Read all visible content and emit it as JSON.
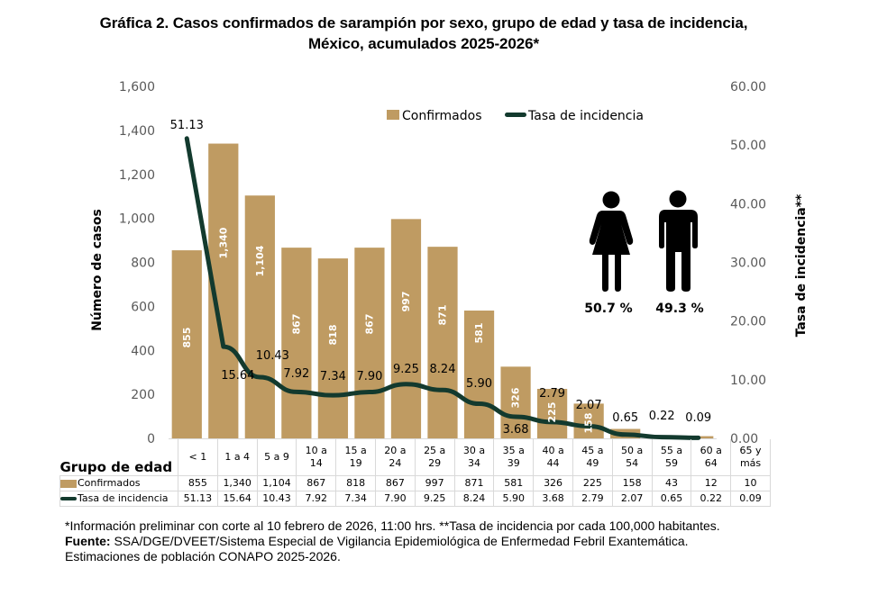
{
  "title_line1": "Gráfica 2. Casos confirmados  de sarampión por sexo, grupo de edad y tasa de incidencia,",
  "title_line2": "México, acumulados 2025-2026*",
  "colors": {
    "bar": "#BF9B62",
    "line": "#133A2E",
    "tick": "#595959",
    "grid_border": "#D9D9D9"
  },
  "sex_split": {
    "female": {
      "icon": "female-figure-icon",
      "percent": "50.7 %"
    },
    "male": {
      "icon": "male-figure-icon",
      "percent": "49.3 %"
    }
  },
  "table": {
    "header_label": "Grupo de edad",
    "rows": [
      {
        "label": "Confirmados",
        "values": [
          "855",
          "1,340",
          "1,104",
          "867",
          "818",
          "867",
          "997",
          "871",
          "581",
          "326",
          "225",
          "158",
          "43",
          "12",
          "10"
        ]
      },
      {
        "label": "Tasa de incidencia",
        "values": [
          "51.13",
          "15.64",
          "10.43",
          "7.92",
          "7.34",
          "7.90",
          "9.25",
          "8.24",
          "5.90",
          "3.68",
          "2.79",
          "2.07",
          "0.65",
          "0.22",
          "0.09"
        ]
      }
    ]
  },
  "notes": {
    "line1": "*Información preliminar con corte al 10  febrero de 2026, 11:00 hrs. **Tasa de incidencia por cada 100,000 habitantes.",
    "source_label": "Fuente:",
    "source_text": " SSA/DGE/DVEET/Sistema Especial de Vigilancia Epidemiológica de Enfermedad Febril Exantemática. Estimaciones de población CONAPO 2025-2026."
  },
  "chart_data": {
    "type": "bar",
    "title": "Gráfica 2. Casos confirmados  de sarampión por sexo, grupo de edad y tasa de incidencia, México, acumulados 2025-2026*",
    "categories": [
      "< 1",
      "1 a 4",
      "5 a 9",
      "10 a 14",
      "15 a 19",
      "20 a 24",
      "25 a 29",
      "30 a 34",
      "35 a 39",
      "40 a 44",
      "45 a 49",
      "50 a 54",
      "55 a 59",
      "60 a 64",
      "65 y más"
    ],
    "category_lines": [
      [
        "< 1"
      ],
      [
        "1 a 4"
      ],
      [
        "5 a 9"
      ],
      [
        "10 a",
        "14"
      ],
      [
        "15 a",
        "19"
      ],
      [
        "20 a",
        "24"
      ],
      [
        "25 a",
        "29"
      ],
      [
        "30 a",
        "34"
      ],
      [
        "35 a",
        "39"
      ],
      [
        "40 a",
        "44"
      ],
      [
        "45 a",
        "49"
      ],
      [
        "50 a",
        "54"
      ],
      [
        "55 a",
        "59"
      ],
      [
        "60 a",
        "64"
      ],
      [
        "65 y",
        "más"
      ]
    ],
    "series": [
      {
        "name": "Confirmados",
        "type": "bar",
        "axis": "left",
        "values": [
          855,
          1340,
          1104,
          867,
          818,
          867,
          997,
          871,
          581,
          326,
          225,
          158,
          43,
          12,
          10
        ],
        "labels": [
          "855",
          "1,340",
          "1,104",
          "867",
          "818",
          "867",
          "997",
          "871",
          "581",
          "326",
          "225",
          "158",
          "",
          "",
          ""
        ]
      },
      {
        "name": "Tasa de incidencia",
        "type": "line",
        "axis": "right",
        "values": [
          51.13,
          15.64,
          10.43,
          7.92,
          7.34,
          7.9,
          9.25,
          8.24,
          5.9,
          3.68,
          2.79,
          2.07,
          0.65,
          0.22,
          0.09
        ],
        "labels": [
          "51.13",
          "15.64",
          "10.43",
          "7.92",
          "7.34",
          "7.90",
          "9.25",
          "8.24",
          "5.90",
          "3.68",
          "2.79",
          "2.07",
          "0.65",
          "0.22",
          "0.09"
        ]
      }
    ],
    "xlabel": "Grupo de edad",
    "ylabel": "Número de casos",
    "y2label": "Tasa de incidencia**",
    "ylim": [
      0,
      1600
    ],
    "y2lim": [
      0,
      60
    ],
    "yticks": [
      "0",
      "200",
      "400",
      "600",
      "800",
      "1,000",
      "1,200",
      "1,400",
      "1,600"
    ],
    "y2ticks": [
      "0.00",
      "10.00",
      "20.00",
      "30.00",
      "40.00",
      "50.00",
      "60.00"
    ],
    "legend": [
      "Confirmados",
      "Tasa de incidencia"
    ],
    "legend_position": "top-center",
    "grid": false
  }
}
